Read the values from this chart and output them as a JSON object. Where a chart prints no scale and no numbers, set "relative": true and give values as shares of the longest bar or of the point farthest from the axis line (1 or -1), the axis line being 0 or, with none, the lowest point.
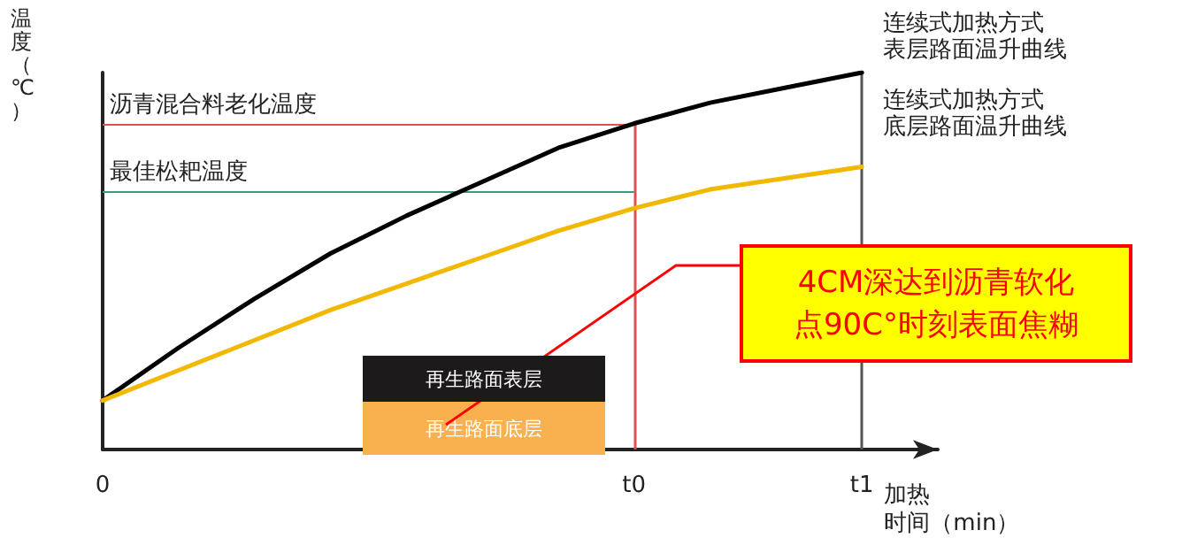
{
  "chart_data": {
    "type": "line",
    "relative": true,
    "ylabel": "温度（℃）",
    "xlabel": "加热时间（min）",
    "categories": [
      "0",
      null,
      null,
      null,
      null,
      null,
      null,
      "t0",
      null,
      null,
      "t1"
    ],
    "series": [
      {
        "name": "连续式加热方式表层路面温升曲线",
        "color": "#000000",
        "values": [
          0.13,
          0.27,
          0.4,
          0.52,
          0.62,
          0.71,
          0.8,
          0.865,
          0.92,
          0.96,
          1.0
        ]
      },
      {
        "name": "连续式加热方式底层路面温升曲线",
        "color": "#f2b800",
        "values": [
          0.13,
          0.21,
          0.29,
          0.37,
          0.44,
          0.51,
          0.58,
          0.64,
          0.69,
          0.72,
          0.75
        ]
      }
    ],
    "ref_lines": [
      {
        "axis": "y",
        "value": 0.865,
        "label": "沥青混合料老化温度",
        "color": "#e05050"
      },
      {
        "axis": "y",
        "value": 0.685,
        "label": "最佳松耙温度",
        "color": "#3a9a7a"
      },
      {
        "axis": "x",
        "value": "t0",
        "color": "#e05050"
      },
      {
        "axis": "x",
        "value": "t1",
        "color": "#555555"
      }
    ],
    "annotations": [
      "再生路面表层",
      "再生路面底层",
      "4CM深达到沥青软化点90C°时刻表面焦糊"
    ],
    "legend": false,
    "grid": false,
    "marker": "none",
    "line_style": "solid"
  }
}
